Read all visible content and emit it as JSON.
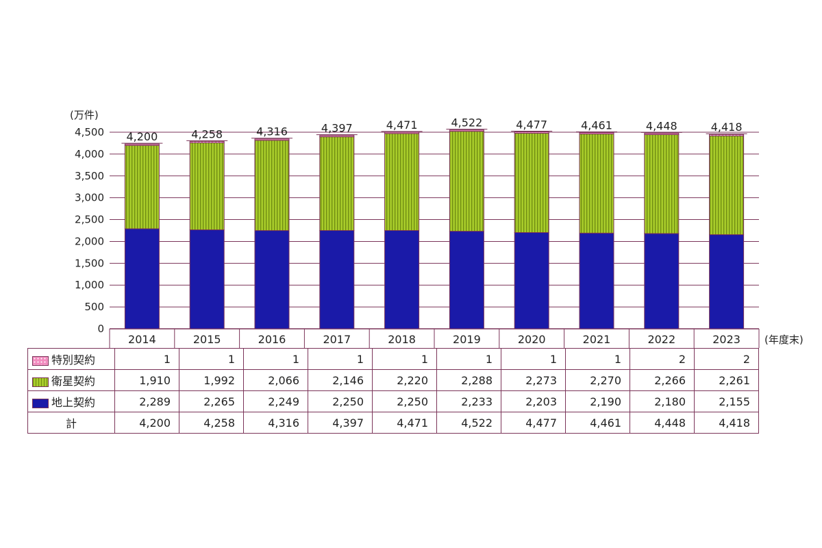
{
  "chart_data": {
    "type": "bar",
    "stacked": true,
    "y_unit_label": "(万件)",
    "x_unit_label": "(年度末)",
    "categories": [
      "2014",
      "2015",
      "2016",
      "2017",
      "2018",
      "2019",
      "2020",
      "2021",
      "2022",
      "2023"
    ],
    "ylim": [
      0,
      4500
    ],
    "yticks": [
      0,
      500,
      1000,
      1500,
      2000,
      2500,
      3000,
      3500,
      4000,
      4500
    ],
    "ytick_labels": [
      "0",
      "500",
      "1,000",
      "1,500",
      "2,000",
      "2,500",
      "3,000",
      "3,500",
      "4,000",
      "4,500"
    ],
    "grid": true,
    "series": [
      {
        "name": "地上契約",
        "color": "#1a1aa8",
        "values": [
          2289,
          2265,
          2249,
          2250,
          2250,
          2233,
          2203,
          2190,
          2180,
          2155
        ],
        "labels": [
          "2,289",
          "2,265",
          "2,249",
          "2,250",
          "2,250",
          "2,233",
          "2,203",
          "2,190",
          "2,180",
          "2,155"
        ]
      },
      {
        "name": "衛星契約",
        "color": "#a8cc2a",
        "values": [
          1910,
          1992,
          2066,
          2146,
          2220,
          2288,
          2273,
          2270,
          2266,
          2261
        ],
        "labels": [
          "1,910",
          "1,992",
          "2,066",
          "2,146",
          "2,220",
          "2,288",
          "2,273",
          "2,270",
          "2,266",
          "2,261"
        ]
      },
      {
        "name": "特別契約",
        "color": "#f28cbf",
        "values": [
          1,
          1,
          1,
          1,
          1,
          1,
          1,
          1,
          2,
          2
        ],
        "labels": [
          "1",
          "1",
          "1",
          "1",
          "1",
          "1",
          "1",
          "1",
          "2",
          "2"
        ]
      }
    ],
    "totals": [
      4200,
      4258,
      4316,
      4397,
      4471,
      4522,
      4477,
      4461,
      4448,
      4418
    ],
    "total_labels": [
      "4,200",
      "4,258",
      "4,316",
      "4,397",
      "4,471",
      "4,522",
      "4,477",
      "4,461",
      "4,448",
      "4,418"
    ]
  },
  "table": {
    "rows": [
      {
        "label": "特別契約",
        "series_index": 2
      },
      {
        "label": "衛星契約",
        "series_index": 1
      },
      {
        "label": "地上契約",
        "series_index": 0
      }
    ],
    "total_label": "計"
  },
  "colors": {
    "grid": "#7a3358",
    "bar_outline": "#7a3358",
    "total_line": "#7a3358"
  }
}
